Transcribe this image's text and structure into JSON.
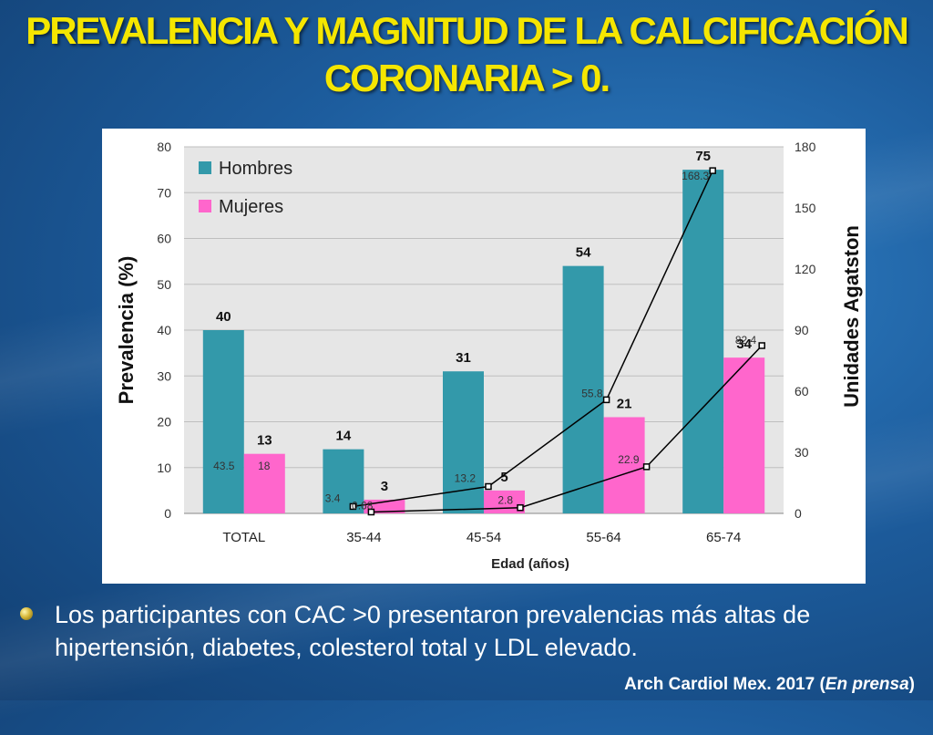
{
  "slide": {
    "title_line1": "PREVALENCIA Y MAGNITUD DE LA CALCIFICACIÓN",
    "title_line2": "CORONARIA > 0.",
    "bullet": "Los participantes con CAC >0 presentaron prevalencias más altas de hipertensión, diabetes, colesterol total y LDL elevado.",
    "source_main": "Arch Cardiol Mex. 2017 (",
    "source_italic": "En prensa",
    "source_close": ")"
  },
  "chart_data": {
    "type": "bar",
    "categories": [
      "TOTAL",
      "35-44",
      "45-54",
      "55-64",
      "65-74"
    ],
    "xlabel": "Edad (años)",
    "ylabel": "Prevalencia (%)",
    "y2label": "Unidades Agatston",
    "ylim": [
      0,
      80
    ],
    "yticks": [
      0,
      10,
      20,
      30,
      40,
      50,
      60,
      70,
      80
    ],
    "y2lim": [
      0,
      180
    ],
    "y2ticks": [
      0,
      30,
      60,
      90,
      120,
      150,
      180
    ],
    "legend_position": "top-left",
    "series": [
      {
        "name": "Hombres",
        "kind": "bar",
        "axis": "left",
        "color": "#3399aa",
        "values": [
          40,
          14,
          31,
          54,
          75
        ]
      },
      {
        "name": "Mujeres",
        "kind": "bar",
        "axis": "left",
        "color": "#ff66cc",
        "values": [
          13,
          3,
          5,
          21,
          34
        ]
      }
    ],
    "line_series": [
      {
        "kind": "line",
        "axis": "right",
        "color": "#000000",
        "values": [
          43.5,
          3.4,
          13.2,
          55.8,
          168.3
        ],
        "labels": [
          "43.5",
          "3.4",
          "13.2",
          "55.8",
          "168.3"
        ]
      },
      {
        "kind": "line",
        "axis": "right",
        "color": "#000000",
        "values": [
          18,
          0.68,
          2.8,
          22.9,
          82.4
        ],
        "labels": [
          "18",
          "0.68",
          "2.8",
          "22.9",
          "82.4"
        ]
      }
    ]
  }
}
